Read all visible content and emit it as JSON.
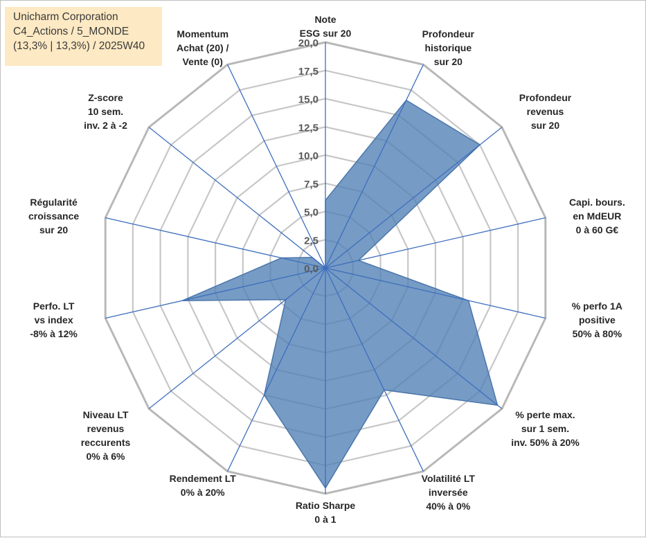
{
  "title_box": {
    "line1": "Unicharm Corporation",
    "line2": "C4_Actions / 5_MONDE",
    "line3": "(13,3% | 13,3%) / 2025W40"
  },
  "colors": {
    "fill": "#4f7fb5",
    "stroke": "#4a76ab",
    "axis": "#3e6ebd",
    "grid": "#c7c7c7",
    "grid_outer": "#b8b8b8",
    "title_bg": "#fde9c3"
  },
  "chart_data": {
    "type": "radar",
    "title": "Unicharm Corporation",
    "rmin": 0,
    "rmax": 20,
    "tick_step": 2.5,
    "ticks": [
      "0,0",
      "2,5",
      "5,0",
      "7,5",
      "10,0",
      "12,5",
      "15,0",
      "17,5",
      "20,0"
    ],
    "axes": [
      {
        "label": [
          "Note",
          "ESG sur 20"
        ],
        "value": 6.0
      },
      {
        "label": [
          "Profondeur",
          "historique",
          "sur 20"
        ],
        "value": 16.5
      },
      {
        "label": [
          "Profondeur",
          "revenus",
          "sur 20"
        ],
        "value": 17.5
      },
      {
        "label": [
          "Capi. bours.",
          "en MdEUR",
          "0 à 60 G€"
        ],
        "value": 3.0
      },
      {
        "label": [
          "% perfo 1A",
          "positive",
          "50% à 80%"
        ],
        "value": 13.0
      },
      {
        "label": [
          "% perte max.",
          "sur 1 sem.",
          "inv. 50% à 20%"
        ],
        "value": 19.5
      },
      {
        "label": [
          "Volatilité LT",
          "inversée",
          "40% à 0%"
        ],
        "value": 12.0
      },
      {
        "label": [
          "Ratio Sharpe",
          "0 à 1"
        ],
        "value": 19.5
      },
      {
        "label": [
          "Rendement LT",
          "0% à 20%"
        ],
        "value": 12.5
      },
      {
        "label": [
          "Niveau LT",
          "revenus",
          "reccurents",
          "0% à 6%"
        ],
        "value": 4.5
      },
      {
        "label": [
          "Perfo. LT",
          "vs index",
          "-8% à 12%"
        ],
        "value": 13.0
      },
      {
        "label": [
          "Régularité",
          "croissance",
          "sur 20"
        ],
        "value": 4.0
      },
      {
        "label": [
          "Z-score",
          "10 sem.",
          "inv. 2 à -2"
        ],
        "value": 1.5
      },
      {
        "label": [
          "Momentum",
          "Achat (20) /",
          "Vente (0)"
        ],
        "value": 0.0
      }
    ]
  }
}
